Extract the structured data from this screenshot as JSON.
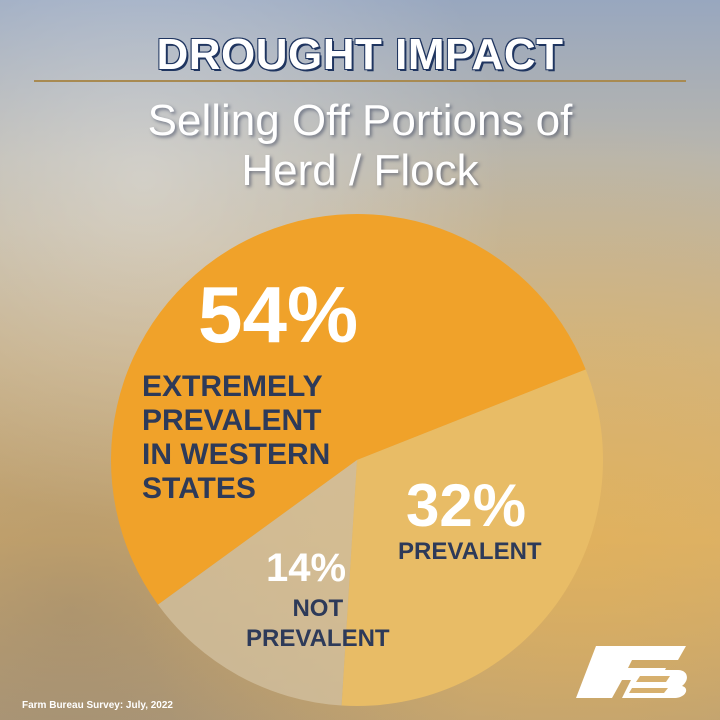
{
  "header": {
    "title": "DROUGHT IMPACT",
    "subtitle_line1": "Selling Off Portions of",
    "subtitle_line2": "Herd / Flock"
  },
  "chart_data": {
    "type": "pie",
    "title": "DROUGHT IMPACT",
    "subtitle": "Selling Off Portions of Herd / Flock",
    "slices": [
      {
        "label": "EXTREMELY PREVALENT IN WESTERN STATES",
        "value": 54,
        "display": "54%",
        "color": "#f0a22a"
      },
      {
        "label": "PREVALENT",
        "value": 32,
        "display": "32%",
        "color": "#e8bc66"
      },
      {
        "label": "NOT PREVALENT",
        "value": 14,
        "display": "14%",
        "color": "#d3c1a2"
      }
    ],
    "label_lines": {
      "extreme": [
        "EXTREMELY",
        "PREVALENT",
        "IN WESTERN",
        "STATES"
      ],
      "prevalent": [
        "PREVALENT"
      ],
      "not": [
        "NOT",
        "PREVALENT"
      ]
    }
  },
  "footer": {
    "source": "Farm Bureau Survey: July, 2022",
    "logo_mark": "®"
  },
  "colors": {
    "navy": "#2d3a59",
    "orange": "#f0a22a",
    "light_orange": "#e8bc66",
    "beige": "#d3c1a2"
  },
  "icons": {
    "logo": "farm-bureau-logo-icon"
  }
}
